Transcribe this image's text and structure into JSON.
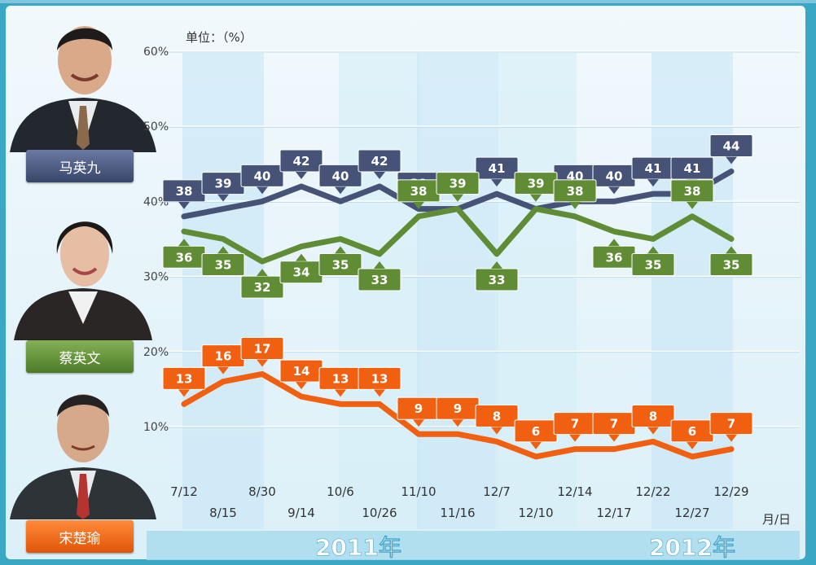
{
  "unit_label": "单位：（%）",
  "x_unit_label": "月/日",
  "year_labels": [
    "2011年",
    "2012年"
  ],
  "candidates": [
    {
      "name": "马英九",
      "color": "#465376"
    },
    {
      "name": "蔡英文",
      "color": "#5f8c35"
    },
    {
      "name": "宋楚瑜",
      "color": "#f06010"
    }
  ],
  "chart_data": {
    "type": "line",
    "x": [
      "7/12",
      "8/15",
      "8/30",
      "9/14",
      "10/6",
      "10/26",
      "11/10",
      "11/16",
      "12/7",
      "12/10",
      "12/14",
      "12/17",
      "12/22",
      "12/27",
      "12/29"
    ],
    "y_ticks": [
      "60%",
      "50%",
      "40%",
      "30%",
      "20%",
      "10%"
    ],
    "ylim": [
      0,
      60
    ],
    "ylabel": "单位：（%）",
    "xlabel": "月/日",
    "series": [
      {
        "name": "马英九",
        "color": "#465376",
        "values": [
          38,
          39,
          40,
          42,
          40,
          42,
          39,
          39,
          41,
          39,
          40,
          40,
          41,
          41,
          44
        ],
        "label_pos": "above"
      },
      {
        "name": "蔡英文",
        "color": "#5f8c35",
        "values": [
          36,
          35,
          32,
          34,
          35,
          33,
          38,
          39,
          33,
          39,
          38,
          36,
          35,
          38,
          35
        ],
        "label_pos": [
          "below",
          "below",
          "below",
          "below",
          "below",
          "below",
          "above",
          "above",
          "below",
          "above",
          "above",
          "below",
          "below",
          "above",
          "below"
        ]
      },
      {
        "name": "宋楚瑜",
        "color": "#f06010",
        "values": [
          13,
          16,
          17,
          14,
          13,
          13,
          9,
          9,
          8,
          6,
          7,
          7,
          8,
          6,
          7
        ],
        "label_pos": "above"
      }
    ]
  }
}
